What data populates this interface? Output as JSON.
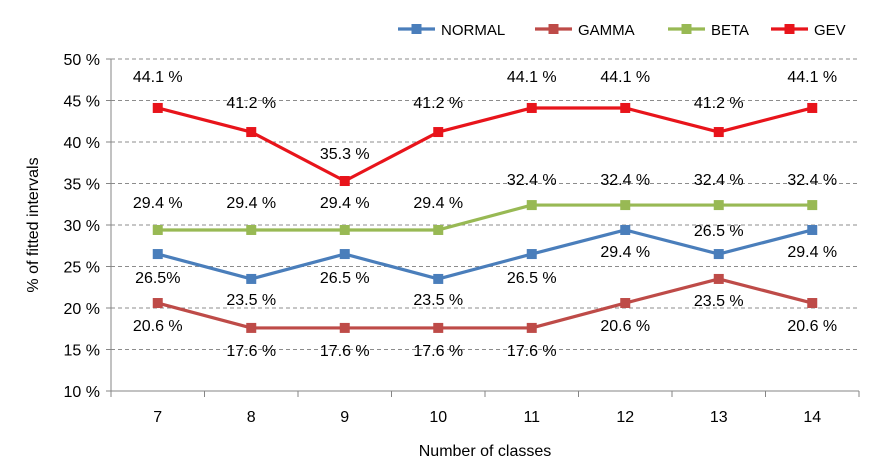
{
  "chart_data": {
    "type": "line",
    "title": "",
    "xlabel": "Number of classes",
    "ylabel": "% of fitted intervals",
    "categories": [
      "7",
      "8",
      "9",
      "10",
      "11",
      "12",
      "13",
      "14"
    ],
    "ylim": [
      10,
      50
    ],
    "yticks": [
      10,
      15,
      20,
      25,
      30,
      35,
      40,
      45,
      50
    ],
    "ytick_labels": [
      "10 %",
      "15 %",
      "20 %",
      "25 %",
      "30 %",
      "35 %",
      "40 %",
      "45 %",
      "50 %"
    ],
    "grid": "horizontal-dashed",
    "legend_position": "top-right",
    "series": [
      {
        "name": "NORMAL",
        "color": "#4a7ebb",
        "values": [
          26.5,
          23.5,
          26.5,
          23.5,
          26.5,
          29.4,
          26.5,
          29.4
        ],
        "labels": [
          "26.5%",
          "23.5 %",
          "26.5 %",
          "23.5 %",
          "26.5 %",
          "29.4 %",
          "26.5 %",
          "29.4 %"
        ]
      },
      {
        "name": "GAMMA",
        "color": "#be4b48",
        "values": [
          20.6,
          17.6,
          17.6,
          17.6,
          17.6,
          20.6,
          23.5,
          20.6
        ],
        "labels": [
          "20.6 %",
          "17.6 %",
          "17.6 %",
          "17.6 %",
          "17.6 %",
          "20.6 %",
          "23.5 %",
          "20.6 %"
        ]
      },
      {
        "name": "BETA",
        "color": "#98b954",
        "values": [
          29.4,
          29.4,
          29.4,
          29.4,
          32.4,
          32.4,
          32.4,
          32.4
        ],
        "labels": [
          "29.4 %",
          "29.4 %",
          "29.4 %",
          "29.4 %",
          "32.4 %",
          "32.4 %",
          "32.4 %",
          "32.4 %"
        ]
      },
      {
        "name": "GEV",
        "color": "#e8141b",
        "values": [
          44.1,
          41.2,
          35.3,
          41.2,
          44.1,
          44.1,
          41.2,
          44.1
        ],
        "labels": [
          "44.1 %",
          "41.2  %",
          "35.3 %",
          "41.2  %",
          "44.1 %",
          "44.1 %",
          "41.2  %",
          "44.1 %"
        ]
      }
    ]
  }
}
